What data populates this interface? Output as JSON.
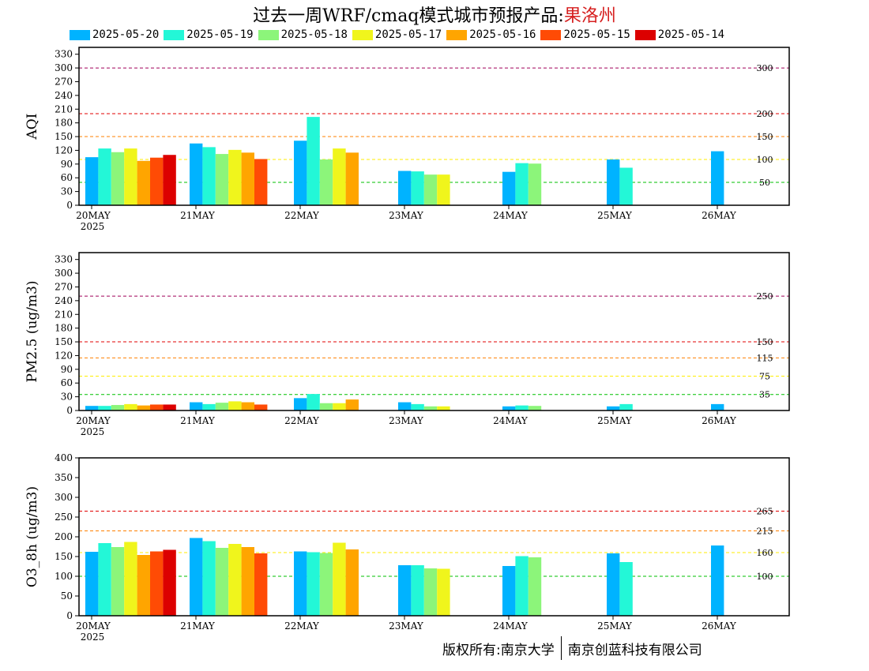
{
  "title": {
    "main": "过去一周WRF/cmaq模式城市预报产品:",
    "city": "果洛州"
  },
  "legend": [
    {
      "label": "2025-05-20",
      "color": "#00b3ff"
    },
    {
      "label": "2025-05-19",
      "color": "#23f7d7"
    },
    {
      "label": "2025-05-18",
      "color": "#8cf57a"
    },
    {
      "label": "2025-05-17",
      "color": "#f0f51c"
    },
    {
      "label": "2025-05-16",
      "color": "#ffa500"
    },
    {
      "label": "2025-05-15",
      "color": "#ff4b05"
    },
    {
      "label": "2025-05-14",
      "color": "#dc0000"
    }
  ],
  "x_labels": [
    "20MAY",
    "21MAY",
    "22MAY",
    "23MAY",
    "24MAY",
    "25MAY",
    "26MAY"
  ],
  "year_label": "2025",
  "chart_data": [
    {
      "type": "bar",
      "ylabel": "AQI",
      "ylim": [
        0,
        345
      ],
      "yticks": [
        0,
        30,
        60,
        90,
        120,
        150,
        180,
        210,
        240,
        270,
        300,
        330
      ],
      "categories": [
        "20MAY",
        "21MAY",
        "22MAY",
        "23MAY",
        "24MAY",
        "25MAY",
        "26MAY"
      ],
      "thresholds": [
        {
          "value": 300,
          "label": "300",
          "color": "#a0005a"
        },
        {
          "value": 200,
          "label": "200",
          "color": "#e00000"
        },
        {
          "value": 150,
          "label": "150",
          "color": "#ff8000"
        },
        {
          "value": 100,
          "label": "100",
          "color": "#ffee00"
        },
        {
          "value": 50,
          "label": "50",
          "color": "#00c000"
        }
      ],
      "series": [
        {
          "name": "2025-05-20",
          "values": [
            105,
            135,
            141,
            75,
            73,
            100,
            118
          ]
        },
        {
          "name": "2025-05-19",
          "values": [
            124,
            127,
            193,
            74,
            92,
            82,
            null
          ]
        },
        {
          "name": "2025-05-18",
          "values": [
            116,
            112,
            100,
            67,
            91,
            null,
            null
          ]
        },
        {
          "name": "2025-05-17",
          "values": [
            124,
            121,
            124,
            67,
            null,
            null,
            null
          ]
        },
        {
          "name": "2025-05-16",
          "values": [
            97,
            115,
            115,
            null,
            null,
            null,
            null
          ]
        },
        {
          "name": "2025-05-15",
          "values": [
            104,
            101,
            null,
            null,
            null,
            null,
            null
          ]
        },
        {
          "name": "2025-05-14",
          "values": [
            110,
            null,
            null,
            null,
            null,
            null,
            null
          ]
        }
      ]
    },
    {
      "type": "bar",
      "ylabel": "PM2.5 (ug/m3)",
      "ylim": [
        0,
        345
      ],
      "yticks": [
        0,
        30,
        60,
        90,
        120,
        150,
        180,
        210,
        240,
        270,
        300,
        330
      ],
      "categories": [
        "20MAY",
        "21MAY",
        "22MAY",
        "23MAY",
        "24MAY",
        "25MAY",
        "26MAY"
      ],
      "thresholds": [
        {
          "value": 250,
          "label": "250",
          "color": "#a0005a"
        },
        {
          "value": 150,
          "label": "150",
          "color": "#e00000"
        },
        {
          "value": 115,
          "label": "115",
          "color": "#ff8000"
        },
        {
          "value": 75,
          "label": "75",
          "color": "#ffee00"
        },
        {
          "value": 35,
          "label": "35",
          "color": "#00c000"
        }
      ],
      "series": [
        {
          "name": "2025-05-20",
          "values": [
            10,
            18,
            27,
            18,
            9,
            9,
            14
          ]
        },
        {
          "name": "2025-05-19",
          "values": [
            10,
            14,
            36,
            14,
            11,
            14,
            null
          ]
        },
        {
          "name": "2025-05-18",
          "values": [
            12,
            17,
            16,
            9,
            10,
            null,
            null
          ]
        },
        {
          "name": "2025-05-17",
          "values": [
            14,
            20,
            16,
            9,
            null,
            null,
            null
          ]
        },
        {
          "name": "2025-05-16",
          "values": [
            11,
            18,
            24,
            null,
            null,
            null,
            null
          ]
        },
        {
          "name": "2025-05-15",
          "values": [
            13,
            13,
            null,
            null,
            null,
            null,
            null
          ]
        },
        {
          "name": "2025-05-14",
          "values": [
            13,
            null,
            null,
            null,
            null,
            null,
            null
          ]
        }
      ]
    },
    {
      "type": "bar",
      "ylabel": "O3_8h (ug/m3)",
      "ylim": [
        0,
        400
      ],
      "yticks": [
        0,
        50,
        100,
        150,
        200,
        250,
        300,
        350,
        400
      ],
      "categories": [
        "20MAY",
        "21MAY",
        "22MAY",
        "23MAY",
        "24MAY",
        "25MAY",
        "26MAY"
      ],
      "thresholds": [
        {
          "value": 265,
          "label": "265",
          "color": "#e00000"
        },
        {
          "value": 215,
          "label": "215",
          "color": "#ff8000"
        },
        {
          "value": 160,
          "label": "160",
          "color": "#ffee00"
        },
        {
          "value": 100,
          "label": "100",
          "color": "#00c000"
        }
      ],
      "series": [
        {
          "name": "2025-05-20",
          "values": [
            162,
            197,
            163,
            128,
            126,
            158,
            178
          ]
        },
        {
          "name": "2025-05-19",
          "values": [
            184,
            189,
            161,
            128,
            151,
            136,
            null
          ]
        },
        {
          "name": "2025-05-18",
          "values": [
            174,
            172,
            159,
            120,
            148,
            null,
            null
          ]
        },
        {
          "name": "2025-05-17",
          "values": [
            187,
            182,
            185,
            119,
            null,
            null,
            null
          ]
        },
        {
          "name": "2025-05-16",
          "values": [
            154,
            174,
            168,
            null,
            null,
            null,
            null
          ]
        },
        {
          "name": "2025-05-15",
          "values": [
            163,
            158,
            null,
            null,
            null,
            null,
            null
          ]
        },
        {
          "name": "2025-05-14",
          "values": [
            167,
            null,
            null,
            null,
            null,
            null,
            null
          ]
        }
      ]
    }
  ],
  "footer": {
    "left": "版权所有:南京大学",
    "right": "南京创蓝科技有限公司"
  }
}
